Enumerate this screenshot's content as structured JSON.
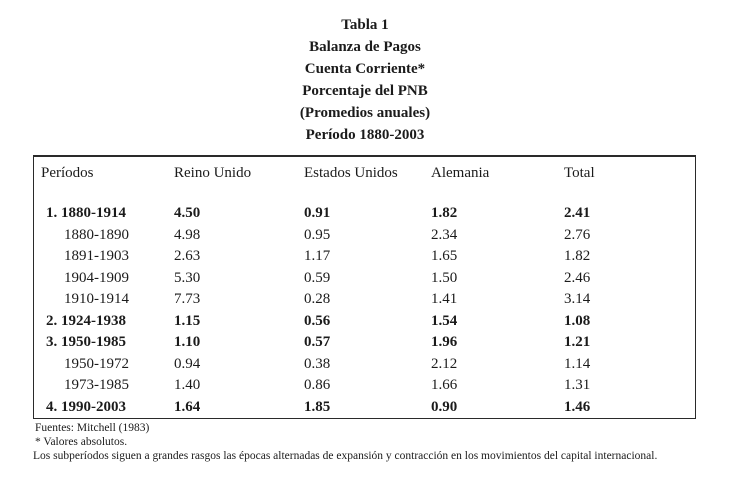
{
  "title_lines": [
    "Tabla 1",
    "Balanza de Pagos",
    "Cuenta Corriente*",
    "Porcentaje del PNB",
    "(Promedios anuales)",
    "Período 1880-2003"
  ],
  "table": {
    "columns": [
      "Períodos",
      "Reino Unido",
      "Estados Unidos",
      "Alemania",
      "Total"
    ],
    "rows": [
      {
        "period": "1. 1880-1914",
        "bold": true,
        "indent": false,
        "values": [
          "4.50",
          "0.91",
          "1.82",
          "2.41"
        ]
      },
      {
        "period": "1880-1890",
        "bold": false,
        "indent": true,
        "values": [
          "4.98",
          "0.95",
          "2.34",
          "2.76"
        ]
      },
      {
        "period": "1891-1903",
        "bold": false,
        "indent": true,
        "values": [
          "2.63",
          "1.17",
          "1.65",
          "1.82"
        ]
      },
      {
        "period": "1904-1909",
        "bold": false,
        "indent": true,
        "values": [
          "5.30",
          "0.59",
          "1.50",
          "2.46"
        ]
      },
      {
        "period": "1910-1914",
        "bold": false,
        "indent": true,
        "values": [
          "7.73",
          "0.28",
          "1.41",
          "3.14"
        ]
      },
      {
        "period": "2. 1924-1938",
        "bold": true,
        "indent": false,
        "values": [
          "1.15",
          "0.56",
          "1.54",
          "1.08"
        ]
      },
      {
        "period": "3. 1950-1985",
        "bold": true,
        "indent": false,
        "values": [
          "1.10",
          "0.57",
          "1.96",
          "1.21"
        ]
      },
      {
        "period": "1950-1972",
        "bold": false,
        "indent": true,
        "values": [
          "0.94",
          "0.38",
          "2.12",
          "1.14"
        ]
      },
      {
        "period": "1973-1985",
        "bold": false,
        "indent": true,
        "values": [
          "1.40",
          "0.86",
          "1.66",
          "1.31"
        ]
      },
      {
        "period": "4. 1990-2003",
        "bold": true,
        "indent": false,
        "values": [
          "1.64",
          "1.85",
          "0.90",
          "1.46"
        ]
      }
    ]
  },
  "notes": {
    "source": "Fuentes: Mitchell (1983)",
    "asterisk": "* Valores absolutos.",
    "paragraph": "Los subperíodos siguen a grandes rasgos las épocas alternadas de expansión y contracción en los movimientos del capital internacional."
  },
  "colors": {
    "text": "#1b1b1b",
    "border": "#2a2a2a",
    "background": "#ffffff"
  }
}
